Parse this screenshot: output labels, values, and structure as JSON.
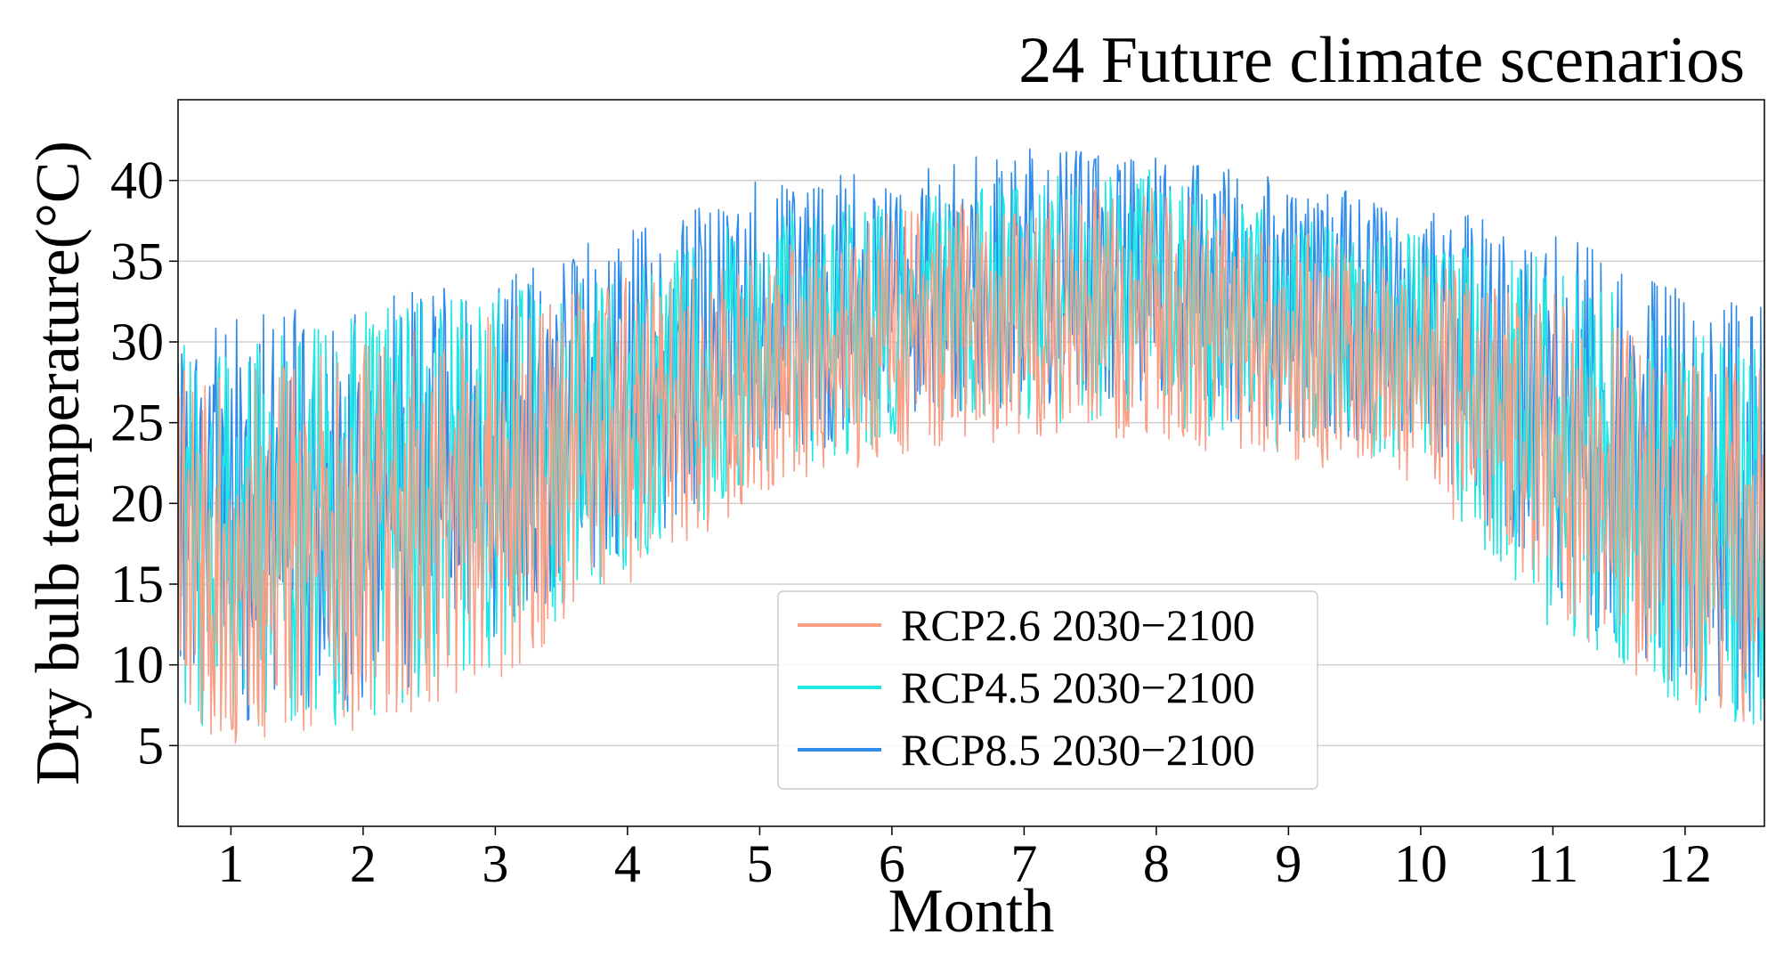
{
  "chart_data": {
    "type": "line",
    "title": "24 Future climate scenarios",
    "xlabel": "Month",
    "ylabel": "Dry bulb temperature(°C)",
    "x_ticks": [
      "1",
      "2",
      "3",
      "4",
      "5",
      "6",
      "7",
      "8",
      "9",
      "10",
      "11",
      "12"
    ],
    "y_ticks": [
      "5",
      "10",
      "15",
      "20",
      "25",
      "30",
      "35",
      "40"
    ],
    "xlim": [
      0.6,
      12.6
    ],
    "ylim": [
      0,
      45
    ],
    "grid": "horizontal",
    "legend_position": "lower-center",
    "series": [
      {
        "name": "RCP2.6 2030−2100",
        "color": "#fa9f86",
        "monthly_envelope": {
          "month": [
            1,
            2,
            3,
            4,
            5,
            6,
            7,
            8,
            9,
            10,
            11,
            12
          ],
          "min": [
            5,
            6,
            9,
            15,
            20,
            23,
            24,
            24,
            22,
            21,
            13,
            7
          ],
          "max": [
            28,
            30,
            32,
            34,
            36,
            38,
            39,
            40,
            37,
            35,
            33,
            29
          ]
        }
      },
      {
        "name": "RCP4.5 2030−2100",
        "color": "#1ee8e4",
        "monthly_envelope": {
          "month": [
            1,
            2,
            3,
            4,
            5,
            6,
            7,
            8,
            9,
            10,
            11,
            12
          ],
          "min": [
            5.5,
            6.5,
            10,
            16,
            21,
            24,
            25,
            25,
            23,
            22,
            12,
            7
          ],
          "max": [
            30,
            32,
            33,
            35,
            38,
            39,
            40,
            41,
            38,
            37,
            35,
            31
          ]
        }
      },
      {
        "name": "RCP8.5 2030−2100",
        "color": "#2f8bea",
        "monthly_envelope": {
          "month": [
            1,
            2,
            3,
            4,
            5,
            6,
            7,
            8,
            9,
            10,
            11,
            12
          ],
          "min": [
            6,
            7,
            11,
            17,
            22,
            25,
            26,
            26,
            24,
            23,
            14,
            8
          ],
          "max": [
            31.5,
            32.5,
            34,
            37,
            40,
            40.5,
            42,
            41.5,
            40,
            38.5,
            37,
            33
          ]
        }
      }
    ]
  }
}
